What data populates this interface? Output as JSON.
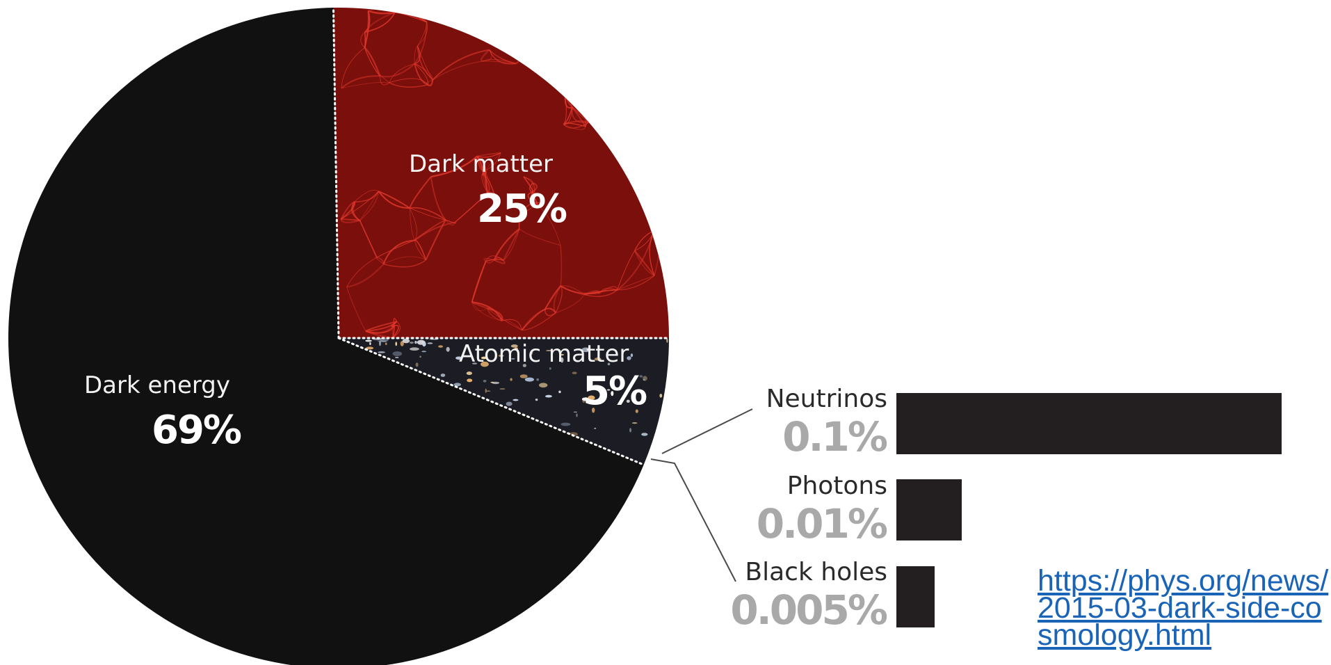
{
  "chart_data": {
    "type": "pie",
    "slices": [
      {
        "label": "Dark energy",
        "value": 69,
        "display": "69%"
      },
      {
        "label": "Dark matter",
        "value": 25,
        "display": "25%"
      },
      {
        "label": "Atomic matter",
        "value": 5,
        "display": "5%"
      }
    ],
    "breakout": {
      "type": "bar",
      "orientation": "horizontal",
      "categories": [
        "Neutrinos",
        "Photons",
        "Black holes"
      ],
      "values": [
        0.1,
        0.01,
        0.005
      ],
      "display": [
        "0.1%",
        "0.01%",
        "0.005%"
      ]
    }
  },
  "colors": {
    "dark_energy": "#111111",
    "dark_matter": "#7a0f0c",
    "dark_matter_web": "#e3382c",
    "atomic_matter": "#1c1d24",
    "bar": "#231f20",
    "percent_gray": "#a9a9a9",
    "link": "#1a64b7"
  },
  "source": {
    "url": "https://phys.org/news/2015-03-dark-side-cosmology.html"
  }
}
